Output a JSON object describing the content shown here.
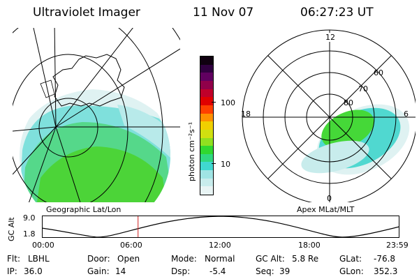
{
  "header": {
    "instrument": "Ultraviolet Imager",
    "date": "11 Nov 07",
    "time": "06:27:23 UT"
  },
  "geo_panel": {
    "caption": "Geographic Lat/Lon"
  },
  "colorbar": {
    "label": "photon cm⁻²s⁻¹",
    "ticks": [
      "100",
      "10"
    ],
    "colors": [
      "#e8f4f4",
      "#c8ecec",
      "#a0e4e4",
      "#40d8d0",
      "#30d880",
      "#30d830",
      "#90e020",
      "#d0e010",
      "#f0d000",
      "#ff9000",
      "#ff4000",
      "#e00000",
      "#c0002a",
      "#90004a",
      "#600060",
      "#300040",
      "#100010"
    ]
  },
  "polar_panel": {
    "caption": "Apex MLat/MLT",
    "mlt_labels": {
      "top": "12",
      "left": "18",
      "right": "6",
      "bottom": "0"
    },
    "lat_labels": [
      "60",
      "70",
      "80"
    ]
  },
  "orbit_plot": {
    "ylabel": "GC Alt",
    "yticks": [
      "9.0",
      "1.8"
    ],
    "xticks": [
      "00:00",
      "06:00",
      "12:00",
      "18:00",
      "23:59"
    ],
    "marker_hour": 6.456
  },
  "info": {
    "flt_label": "Flt:",
    "flt_value": "LBHL",
    "door_label": "Door:",
    "door_value": "Open",
    "mode_label": "Mode:",
    "mode_value": "Normal",
    "gcalt_label": "GC Alt:",
    "gcalt_value": "5.8 Re",
    "glat_label": "GLat:",
    "glat_value": "-76.8",
    "ip_label": "IP:",
    "ip_value": "36.0",
    "gain_label": "Gain:",
    "gain_value": "14",
    "dsp_label": "Dsp:",
    "dsp_value": "-5.4",
    "seq_label": "Seq:",
    "seq_value": "39",
    "glon_label": "GLon:",
    "glon_value": "352.3"
  }
}
